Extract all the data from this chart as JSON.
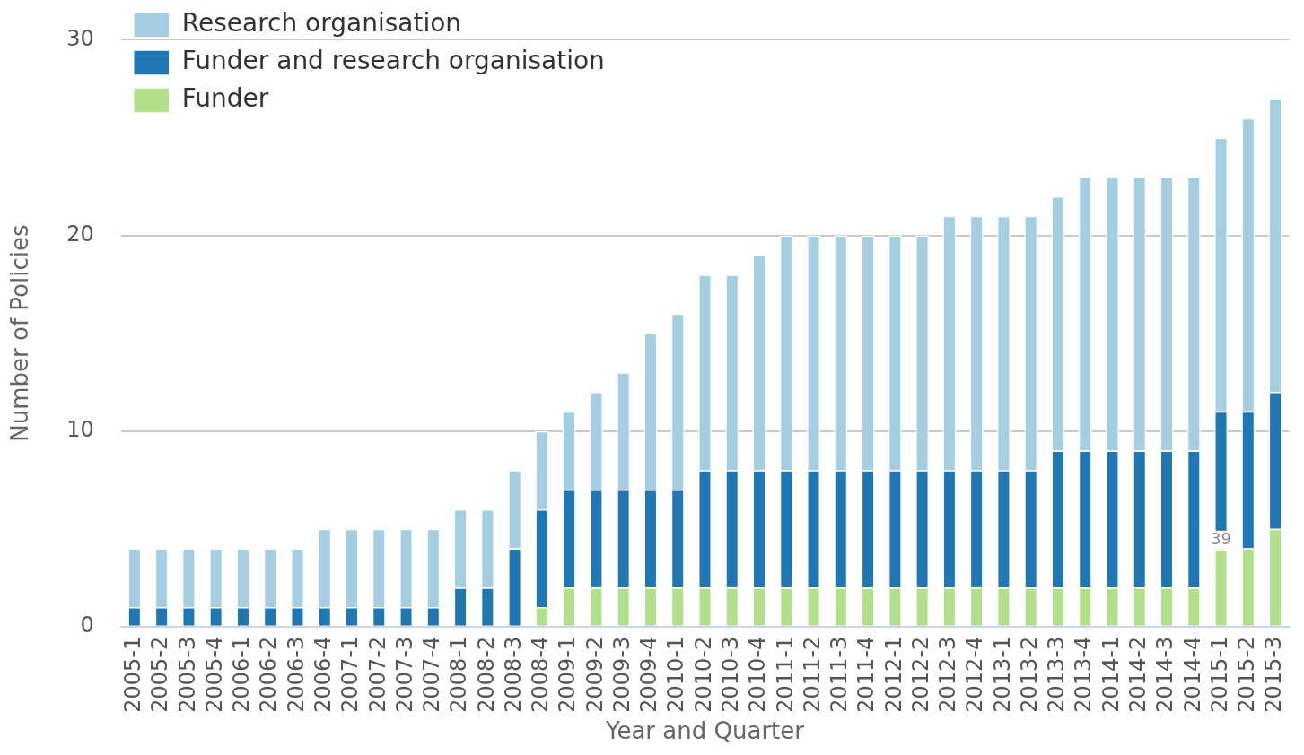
{
  "chart_data": {
    "type": "bar",
    "stacked": true,
    "xlabel": "Year and Quarter",
    "ylabel": "Number of Policies",
    "categories": [
      "2005-1",
      "2005-2",
      "2005-3",
      "2005-4",
      "2006-1",
      "2006-2",
      "2006-3",
      "2006-4",
      "2007-1",
      "2007-2",
      "2007-3",
      "2007-4",
      "2008-1",
      "2008-2",
      "2008-3",
      "2008-4",
      "2009-1",
      "2009-2",
      "2009-3",
      "2009-4",
      "2010-1",
      "2010-2",
      "2010-3",
      "2010-4",
      "2011-1",
      "2011-2",
      "2011-3",
      "2011-4",
      "2012-1",
      "2012-2",
      "2012-3",
      "2012-4",
      "2013-1",
      "2013-2",
      "2013-3",
      "2013-4",
      "2014-1",
      "2014-2",
      "2014-3",
      "2014-4",
      "2015-1",
      "2015-2",
      "2015-3"
    ],
    "series": [
      {
        "name": "Funder",
        "color": "#b2df8a",
        "values": [
          0,
          0,
          0,
          0,
          0,
          0,
          0,
          0,
          0,
          0,
          0,
          0,
          0,
          0,
          0,
          1,
          2,
          2,
          2,
          2,
          2,
          2,
          2,
          2,
          2,
          2,
          2,
          2,
          2,
          2,
          2,
          2,
          2,
          2,
          2,
          2,
          2,
          2,
          2,
          2,
          4,
          4,
          5
        ]
      },
      {
        "name": "Funder and research organisation",
        "color": "#1f78b4",
        "values": [
          1,
          1,
          1,
          1,
          1,
          1,
          1,
          1,
          1,
          1,
          1,
          1,
          2,
          2,
          4,
          5,
          5,
          5,
          5,
          5,
          5,
          6,
          6,
          6,
          6,
          6,
          6,
          6,
          6,
          6,
          6,
          6,
          6,
          6,
          7,
          7,
          7,
          7,
          7,
          7,
          7,
          7,
          7
        ]
      },
      {
        "name": "Research organisation",
        "color": "#a6cee3",
        "values": [
          3,
          3,
          3,
          3,
          3,
          3,
          3,
          4,
          4,
          4,
          4,
          4,
          4,
          4,
          4,
          4,
          4,
          5,
          6,
          8,
          9,
          10,
          10,
          11,
          12,
          12,
          12,
          12,
          12,
          12,
          13,
          13,
          13,
          13,
          13,
          14,
          14,
          14,
          14,
          14,
          14,
          15,
          15
        ]
      }
    ],
    "ylim": [
      0,
      30
    ],
    "yticks": [
      0,
      10,
      20,
      30
    ],
    "grid": "y",
    "legend": "top left",
    "annotations": [
      {
        "text": "39",
        "x": "2015-1",
        "y": 4.4
      }
    ]
  }
}
